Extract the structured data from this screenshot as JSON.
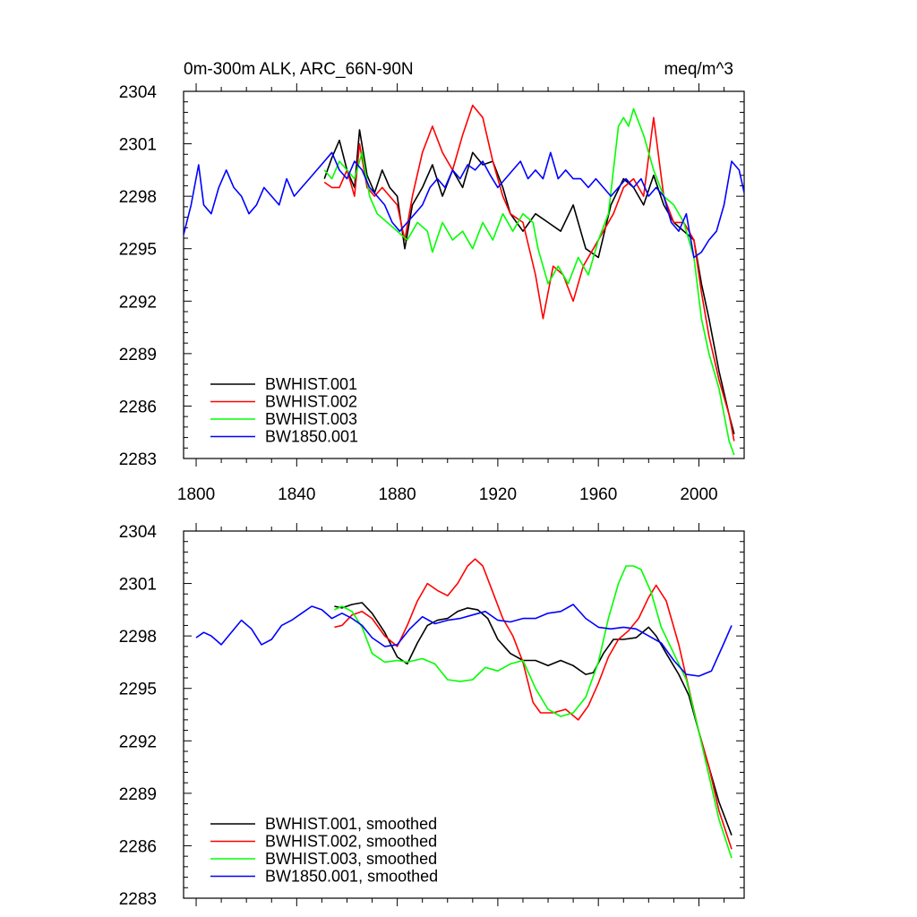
{
  "chart_data": [
    {
      "type": "line",
      "title_left": "0m-300m ALK, ARC_66N-90N",
      "title_right": "meq/m^3",
      "xlim": [
        1795,
        2018
      ],
      "ylim": [
        2283,
        2304
      ],
      "yticks": [
        2283,
        2286,
        2289,
        2292,
        2295,
        2298,
        2301,
        2304
      ],
      "xticks": [
        1800,
        1840,
        1880,
        1920,
        1960,
        2000
      ],
      "xtick_labels": [
        "1800",
        "1840",
        "1880",
        "1920",
        "1960",
        "2000"
      ],
      "show_xtick_labels": true,
      "legend_position": "bottom-left",
      "series": [
        {
          "name": "BWHIST.001",
          "color": "#000000",
          "x": [
            1851,
            1854,
            1857,
            1860,
            1863,
            1865,
            1868,
            1871,
            1874,
            1877,
            1880,
            1883,
            1886,
            1890,
            1894,
            1898,
            1902,
            1906,
            1910,
            1914,
            1918,
            1922,
            1925,
            1930,
            1935,
            1940,
            1945,
            1950,
            1955,
            1960,
            1965,
            1970,
            1974,
            1978,
            1982,
            1986,
            1990,
            1994,
            1998,
            2001,
            2004,
            2008,
            2012,
            2014
          ],
          "y": [
            2299.0,
            2300.2,
            2301.2,
            2299.5,
            2298.5,
            2301.8,
            2299.2,
            2298.2,
            2299.5,
            2298.5,
            2298.0,
            2295.0,
            2297.5,
            2298.5,
            2299.8,
            2298.0,
            2299.5,
            2298.5,
            2300.5,
            2299.8,
            2300.0,
            2298.5,
            2297.0,
            2296.0,
            2297.0,
            2296.5,
            2296.0,
            2297.5,
            2295.0,
            2294.5,
            2297.5,
            2299.0,
            2298.5,
            2297.5,
            2299.2,
            2297.5,
            2296.5,
            2296.0,
            2295.5,
            2293.0,
            2291.0,
            2288.0,
            2285.5,
            2284.4
          ]
        },
        {
          "name": "BWHIST.002",
          "color": "#ff0000",
          "x": [
            1851,
            1854,
            1857,
            1860,
            1863,
            1865,
            1868,
            1871,
            1874,
            1877,
            1880,
            1883,
            1886,
            1890,
            1894,
            1898,
            1902,
            1906,
            1910,
            1914,
            1918,
            1922,
            1925,
            1930,
            1935,
            1938,
            1942,
            1946,
            1950,
            1954,
            1958,
            1962,
            1966,
            1970,
            1974,
            1978,
            1982,
            1986,
            1990,
            1994,
            1998,
            2001,
            2004,
            2008,
            2012,
            2014
          ],
          "y": [
            2298.8,
            2298.5,
            2298.5,
            2299.5,
            2298.0,
            2301.0,
            2298.5,
            2298.0,
            2298.5,
            2298.0,
            2297.5,
            2295.5,
            2298.0,
            2300.5,
            2302.0,
            2300.5,
            2299.5,
            2301.5,
            2303.2,
            2302.5,
            2300.0,
            2298.0,
            2297.0,
            2296.5,
            2293.5,
            2291.0,
            2294.0,
            2293.5,
            2292.0,
            2294.0,
            2295.0,
            2296.0,
            2297.0,
            2298.5,
            2299.0,
            2298.0,
            2302.5,
            2298.0,
            2296.5,
            2296.5,
            2295.5,
            2292.5,
            2290.0,
            2287.5,
            2285.5,
            2284.0
          ]
        },
        {
          "name": "BWHIST.003",
          "color": "#00ff00",
          "x": [
            1851,
            1854,
            1857,
            1860,
            1863,
            1866,
            1869,
            1872,
            1876,
            1880,
            1884,
            1888,
            1892,
            1894,
            1898,
            1902,
            1906,
            1910,
            1914,
            1918,
            1922,
            1926,
            1930,
            1934,
            1936,
            1940,
            1944,
            1948,
            1952,
            1956,
            1960,
            1964,
            1968,
            1970,
            1972,
            1974,
            1978,
            1982,
            1986,
            1990,
            1994,
            1998,
            2001,
            2004,
            2008,
            2012,
            2014
          ],
          "y": [
            2299.5,
            2299.0,
            2300.0,
            2299.5,
            2299.0,
            2300.5,
            2298.0,
            2297.0,
            2296.5,
            2296.0,
            2295.5,
            2296.5,
            2296.0,
            2294.8,
            2296.5,
            2295.5,
            2296.0,
            2295.0,
            2296.5,
            2295.5,
            2297.0,
            2296.0,
            2297.0,
            2296.5,
            2295.0,
            2293.0,
            2294.0,
            2293.0,
            2294.5,
            2293.5,
            2295.5,
            2297.0,
            2302.0,
            2302.5,
            2302.0,
            2303.0,
            2301.5,
            2299.5,
            2298.0,
            2297.5,
            2296.5,
            2294.5,
            2291.0,
            2289.0,
            2287.0,
            2284.0,
            2283.2
          ]
        },
        {
          "name": "BW1850.001",
          "color": "#0000ff",
          "x": [
            1795,
            1798,
            1801,
            1803,
            1806,
            1809,
            1812,
            1815,
            1818,
            1821,
            1824,
            1827,
            1830,
            1833,
            1836,
            1839,
            1842,
            1845,
            1848,
            1851,
            1854,
            1857,
            1860,
            1863,
            1866,
            1869,
            1872,
            1875,
            1878,
            1881,
            1884,
            1887,
            1890,
            1893,
            1896,
            1899,
            1902,
            1905,
            1908,
            1911,
            1914,
            1917,
            1920,
            1923,
            1926,
            1929,
            1932,
            1935,
            1938,
            1941,
            1944,
            1947,
            1950,
            1953,
            1956,
            1959,
            1962,
            1965,
            1968,
            1971,
            1974,
            1977,
            1980,
            1983,
            1986,
            1989,
            1992,
            1995,
            1998,
            2001,
            2004,
            2007,
            2010,
            2013,
            2016,
            2018
          ],
          "y": [
            2295.8,
            2297.5,
            2299.8,
            2297.5,
            2297.0,
            2298.5,
            2299.5,
            2298.5,
            2298.0,
            2297.0,
            2297.5,
            2298.5,
            2298.0,
            2297.5,
            2299.0,
            2298.0,
            2298.5,
            2299.0,
            2299.5,
            2300.0,
            2300.5,
            2299.5,
            2299.0,
            2300.0,
            2299.5,
            2298.5,
            2298.0,
            2297.5,
            2296.5,
            2296.0,
            2296.5,
            2297.0,
            2297.5,
            2298.5,
            2299.0,
            2298.5,
            2299.5,
            2299.0,
            2299.8,
            2299.5,
            2300.0,
            2299.2,
            2298.5,
            2299.0,
            2299.5,
            2300.0,
            2299.0,
            2299.5,
            2299.0,
            2300.5,
            2299.0,
            2299.5,
            2299.0,
            2299.0,
            2298.5,
            2299.0,
            2298.5,
            2298.0,
            2298.5,
            2299.0,
            2298.5,
            2299.0,
            2298.0,
            2298.5,
            2298.0,
            2296.5,
            2296.0,
            2297.0,
            2294.5,
            2294.8,
            2295.5,
            2296.0,
            2297.5,
            2300.0,
            2299.5,
            2298.2
          ]
        }
      ]
    },
    {
      "type": "line",
      "xlim": [
        1795,
        2018
      ],
      "ylim": [
        2283,
        2304
      ],
      "yticks": [
        2283,
        2286,
        2289,
        2292,
        2295,
        2298,
        2301,
        2304
      ],
      "xticks": [
        1800,
        1840,
        1880,
        1920,
        1960,
        2000
      ],
      "show_xtick_labels": false,
      "legend_position": "bottom-left",
      "series": [
        {
          "name": "BWHIST.001, smoothed",
          "color": "#000000",
          "x": [
            1855,
            1858,
            1862,
            1866,
            1870,
            1875,
            1880,
            1884,
            1888,
            1892,
            1896,
            1900,
            1904,
            1908,
            1912,
            1916,
            1920,
            1925,
            1930,
            1935,
            1940,
            1945,
            1950,
            1955,
            1958,
            1962,
            1966,
            1970,
            1975,
            1980,
            1983,
            1987,
            1992,
            1996,
            2000,
            2004,
            2008,
            2013
          ],
          "y": [
            2299.7,
            2299.6,
            2299.8,
            2299.9,
            2299.3,
            2298.2,
            2296.8,
            2296.4,
            2297.6,
            2298.6,
            2298.9,
            2299.0,
            2299.4,
            2299.6,
            2299.5,
            2299.0,
            2297.8,
            2297.0,
            2296.6,
            2296.6,
            2296.3,
            2296.6,
            2296.3,
            2295.8,
            2295.9,
            2297.0,
            2297.8,
            2297.8,
            2297.9,
            2298.5,
            2298.0,
            2297.0,
            2295.8,
            2294.6,
            2292.5,
            2290.5,
            2288.5,
            2286.6
          ]
        },
        {
          "name": "BWHIST.002, smoothed",
          "color": "#ff0000",
          "x": [
            1855,
            1858,
            1862,
            1866,
            1870,
            1875,
            1880,
            1884,
            1888,
            1892,
            1896,
            1900,
            1904,
            1908,
            1911,
            1914,
            1918,
            1922,
            1926,
            1930,
            1934,
            1937,
            1942,
            1947,
            1952,
            1956,
            1960,
            1964,
            1968,
            1972,
            1976,
            1980,
            1983,
            1987,
            1992,
            1996,
            2000,
            2004,
            2008,
            2013
          ],
          "y": [
            2298.5,
            2298.6,
            2299.2,
            2299.4,
            2299.0,
            2298.0,
            2297.4,
            2298.6,
            2300.0,
            2301.0,
            2300.6,
            2300.3,
            2301.0,
            2302.0,
            2302.4,
            2302.0,
            2300.5,
            2299.0,
            2298.0,
            2296.5,
            2294.2,
            2293.6,
            2293.6,
            2293.8,
            2293.2,
            2294.0,
            2295.3,
            2296.8,
            2297.8,
            2298.3,
            2299.0,
            2300.2,
            2300.9,
            2300.0,
            2297.5,
            2295.0,
            2292.5,
            2290.5,
            2288.0,
            2285.8
          ]
        },
        {
          "name": "BWHIST.003, smoothed",
          "color": "#00ff00",
          "x": [
            1855,
            1858,
            1862,
            1866,
            1870,
            1875,
            1880,
            1884,
            1890,
            1895,
            1900,
            1905,
            1910,
            1915,
            1920,
            1925,
            1930,
            1935,
            1940,
            1945,
            1950,
            1955,
            1960,
            1964,
            1968,
            1971,
            1974,
            1977,
            1981,
            1985,
            1990,
            1995,
            2000,
            2004,
            2008,
            2013
          ],
          "y": [
            2299.5,
            2299.7,
            2299.4,
            2298.5,
            2297.0,
            2296.5,
            2296.6,
            2296.5,
            2296.7,
            2296.4,
            2295.5,
            2295.4,
            2295.5,
            2296.2,
            2296.0,
            2296.4,
            2296.6,
            2295.0,
            2293.8,
            2293.4,
            2293.6,
            2294.5,
            2296.5,
            2299.0,
            2301.0,
            2302.0,
            2302.0,
            2301.8,
            2300.5,
            2298.5,
            2297.0,
            2295.5,
            2292.5,
            2290.0,
            2287.5,
            2285.3
          ]
        },
        {
          "name": "BW1850.001, smoothed",
          "color": "#0000ff",
          "x": [
            1800,
            1803,
            1806,
            1810,
            1814,
            1818,
            1822,
            1826,
            1830,
            1834,
            1838,
            1842,
            1846,
            1850,
            1854,
            1858,
            1862,
            1866,
            1870,
            1875,
            1880,
            1885,
            1890,
            1895,
            1900,
            1905,
            1910,
            1915,
            1920,
            1925,
            1930,
            1935,
            1940,
            1945,
            1950,
            1955,
            1960,
            1965,
            1970,
            1975,
            1980,
            1985,
            1990,
            1995,
            2000,
            2005,
            2010,
            2013
          ],
          "y": [
            2297.9,
            2298.2,
            2298.0,
            2297.5,
            2298.2,
            2298.9,
            2298.4,
            2297.5,
            2297.8,
            2298.6,
            2298.9,
            2299.3,
            2299.7,
            2299.5,
            2299.0,
            2299.3,
            2299.0,
            2298.6,
            2297.9,
            2297.4,
            2297.5,
            2298.4,
            2299.1,
            2298.7,
            2298.9,
            2299.0,
            2299.2,
            2299.4,
            2298.9,
            2298.8,
            2299.0,
            2299.0,
            2299.3,
            2299.4,
            2299.8,
            2299.0,
            2298.5,
            2298.4,
            2298.5,
            2298.4,
            2298.0,
            2297.6,
            2296.6,
            2295.8,
            2295.7,
            2296.0,
            2297.6,
            2298.6
          ]
        }
      ]
    }
  ]
}
